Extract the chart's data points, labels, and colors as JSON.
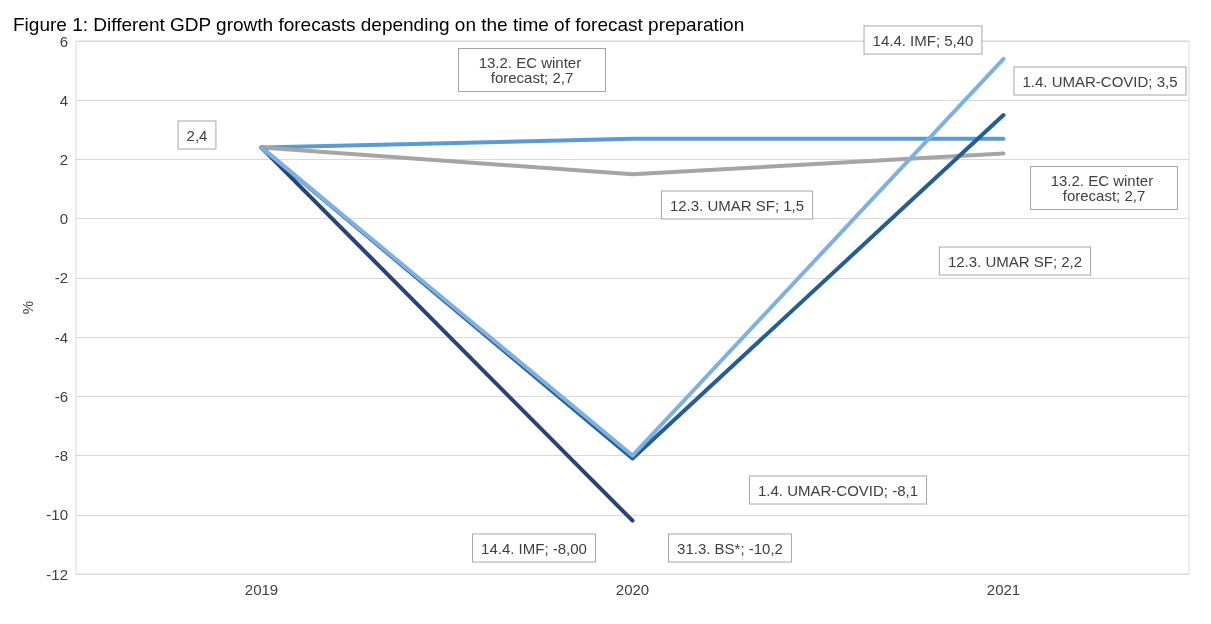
{
  "chart_data": {
    "type": "line",
    "title": "Figure 1: Different GDP growth forecasts depending on the time of forecast preparation",
    "ylabel": "%",
    "categories": [
      "2019",
      "2020",
      "2021"
    ],
    "series": [
      {
        "color": "#5b9bd5",
        "values": [
          2.4,
          2.7,
          2.7
        ]
      },
      {
        "color": "#a5a5a5",
        "values": [
          2.4,
          1.5,
          2.2
        ]
      },
      {
        "color": "#264478",
        "values": [
          2.4,
          -10.2,
          null
        ]
      },
      {
        "color": "#255e91",
        "values": [
          2.4,
          -8.1,
          3.5
        ]
      },
      {
        "color": "#7eb1e1",
        "values": [
          2.4,
          -8.0,
          5.4
        ]
      }
    ],
    "ylim": [
      -12,
      6
    ],
    "yticks": [
      -12,
      -10,
      -8,
      -6,
      -4,
      -2,
      0,
      2,
      4,
      6
    ],
    "grid": "y",
    "marker": "none",
    "line_style": "solid",
    "annotations": [
      "2,4",
      "13.2. EC winter forecast; 2,7",
      "12.3. UMAR SF; 1,5",
      "14.4. IMF; 5,40",
      "1.4. UMAR-COVID; 3,5",
      "13.2. EC winter forecast; 2,7",
      "12.3. UMAR SF; 2,2",
      "1.4. UMAR-COVID; -8,1",
      "14.4. IMF; -8,00",
      "31.3. BS*; -10,2"
    ]
  }
}
